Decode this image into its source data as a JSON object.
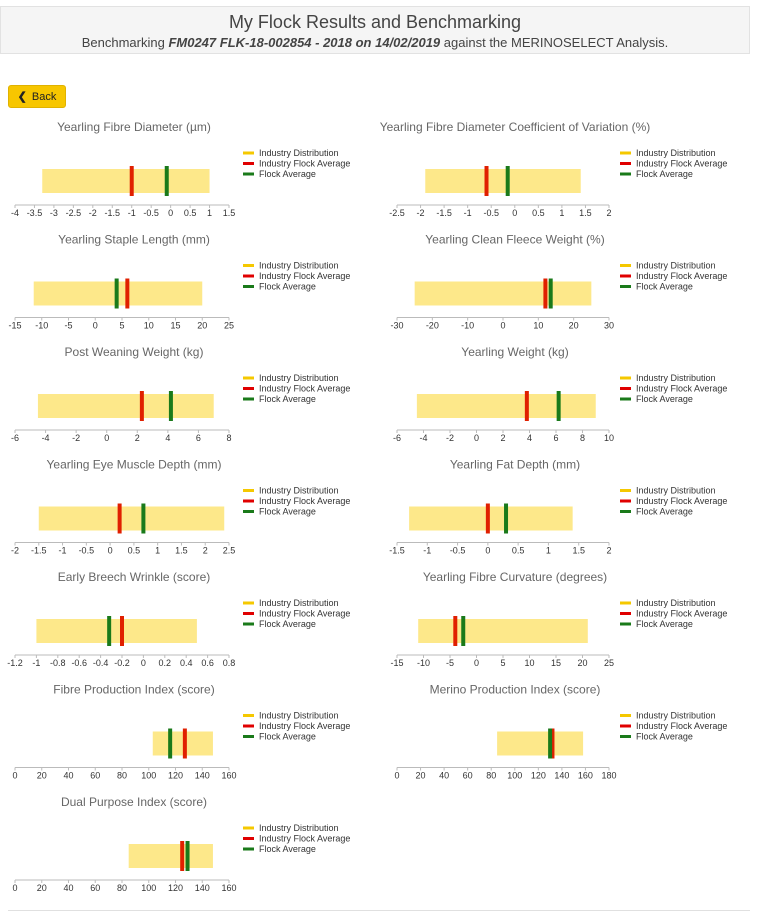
{
  "header": {
    "title": "My Flock Results and Benchmarking",
    "subtitle_prefix": "Benchmarking ",
    "subtitle_bold": "FM0247 FLK-18-002854 - 2018 on 14/02/2019",
    "subtitle_suffix": " against the MERINOSELECT Analysis."
  },
  "back_button": {
    "label": "Back"
  },
  "legend": {
    "items": [
      "Industry Distribution",
      "Industry Flock Average",
      "Flock Average"
    ],
    "colors": [
      "#f5c800",
      "#e00000",
      "#1a7a1a"
    ]
  },
  "colors": {
    "distribution_fill": "#fde88a",
    "industry_avg": "#e02000",
    "flock_avg": "#1a7a1a"
  },
  "chart_data": [
    {
      "type": "bar",
      "title": "Yearling Fibre Diameter (µm)",
      "ticks": [
        "-4",
        "-3.5",
        "-3",
        "-2.5",
        "-2",
        "-1.5",
        "-1",
        "-0.5",
        "0",
        "0.5",
        "1",
        "1.5"
      ],
      "xlim": [
        -4,
        1.5
      ],
      "distribution": [
        -3.3,
        1.0
      ],
      "industry_flock_average": -1.0,
      "flock_average": -0.1
    },
    {
      "type": "bar",
      "title": "Yearling Fibre Diameter Coefficient of Variation (%)",
      "ticks": [
        "-2.5",
        "-2",
        "-1.5",
        "-1",
        "-0.5",
        "0",
        "0.5",
        "1",
        "1.5",
        "2"
      ],
      "xlim": [
        -2.5,
        2
      ],
      "distribution": [
        -1.9,
        1.4
      ],
      "industry_flock_average": -0.6,
      "flock_average": -0.15
    },
    {
      "type": "bar",
      "title": "Yearling Staple Length (mm)",
      "ticks": [
        "-15",
        "-10",
        "-5",
        "0",
        "5",
        "10",
        "15",
        "20",
        "25"
      ],
      "xlim": [
        -15,
        25
      ],
      "distribution": [
        -11.5,
        20
      ],
      "industry_flock_average": 6,
      "flock_average": 4
    },
    {
      "type": "bar",
      "title": "Yearling Clean Fleece Weight (%)",
      "ticks": [
        "-30",
        "-20",
        "-10",
        "0",
        "10",
        "20",
        "30"
      ],
      "xlim": [
        -30,
        30
      ],
      "distribution": [
        -25,
        25
      ],
      "industry_flock_average": 12,
      "flock_average": 13.5
    },
    {
      "type": "bar",
      "title": "Post Weaning Weight (kg)",
      "ticks": [
        "-6",
        "-4",
        "-2",
        "0",
        "2",
        "4",
        "6",
        "8"
      ],
      "xlim": [
        -6,
        8
      ],
      "distribution": [
        -4.5,
        7
      ],
      "industry_flock_average": 2.3,
      "flock_average": 4.2
    },
    {
      "type": "bar",
      "title": "Yearling Weight (kg)",
      "ticks": [
        "-6",
        "-4",
        "-2",
        "0",
        "2",
        "4",
        "6",
        "8",
        "10"
      ],
      "xlim": [
        -6,
        10
      ],
      "distribution": [
        -4.5,
        9
      ],
      "industry_flock_average": 3.8,
      "flock_average": 6.2
    },
    {
      "type": "bar",
      "title": "Yearling Eye Muscle Depth (mm)",
      "ticks": [
        "-2",
        "-1.5",
        "-1",
        "-0.5",
        "0",
        "0.5",
        "1",
        "1.5",
        "2",
        "2.5"
      ],
      "xlim": [
        -2,
        2.5
      ],
      "distribution": [
        -1.5,
        2.4
      ],
      "industry_flock_average": 0.2,
      "flock_average": 0.7
    },
    {
      "type": "bar",
      "title": "Yearling Fat Depth (mm)",
      "ticks": [
        "-1.5",
        "-1",
        "-0.5",
        "0",
        "0.5",
        "1",
        "1.5",
        "2"
      ],
      "xlim": [
        -1.5,
        2
      ],
      "distribution": [
        -1.3,
        1.4
      ],
      "industry_flock_average": 0.0,
      "flock_average": 0.3
    },
    {
      "type": "bar",
      "title": "Early Breech Wrinkle (score)",
      "ticks": [
        "-1.2",
        "-1",
        "-0.8",
        "-0.6",
        "-0.4",
        "-0.2",
        "0",
        "0.2",
        "0.4",
        "0.6",
        "0.8"
      ],
      "xlim": [
        -1.2,
        0.8
      ],
      "distribution": [
        -1.0,
        0.5
      ],
      "industry_flock_average": -0.2,
      "flock_average": -0.32
    },
    {
      "type": "bar",
      "title": "Yearling Fibre Curvature (degrees)",
      "ticks": [
        "-15",
        "-10",
        "-5",
        "0",
        "5",
        "10",
        "15",
        "20",
        "25"
      ],
      "xlim": [
        -15,
        25
      ],
      "distribution": [
        -11,
        21
      ],
      "industry_flock_average": -4,
      "flock_average": -2.5
    },
    {
      "type": "bar",
      "title": "Fibre Production Index (score)",
      "ticks": [
        "0",
        "20",
        "40",
        "60",
        "80",
        "100",
        "120",
        "140",
        "160"
      ],
      "xlim": [
        0,
        160
      ],
      "distribution": [
        103,
        148
      ],
      "industry_flock_average": 127,
      "flock_average": 116
    },
    {
      "type": "bar",
      "title": "Merino Production Index (score)",
      "ticks": [
        "0",
        "20",
        "40",
        "60",
        "80",
        "100",
        "120",
        "140",
        "160",
        "180"
      ],
      "xlim": [
        0,
        180
      ],
      "distribution": [
        85,
        158
      ],
      "industry_flock_average": 132,
      "flock_average": 130
    },
    {
      "type": "bar",
      "title": "Dual Purpose Index (score)",
      "ticks": [
        "0",
        "20",
        "40",
        "60",
        "80",
        "100",
        "120",
        "140",
        "160"
      ],
      "xlim": [
        0,
        160
      ],
      "distribution": [
        85,
        148
      ],
      "industry_flock_average": 125,
      "flock_average": 129
    }
  ]
}
